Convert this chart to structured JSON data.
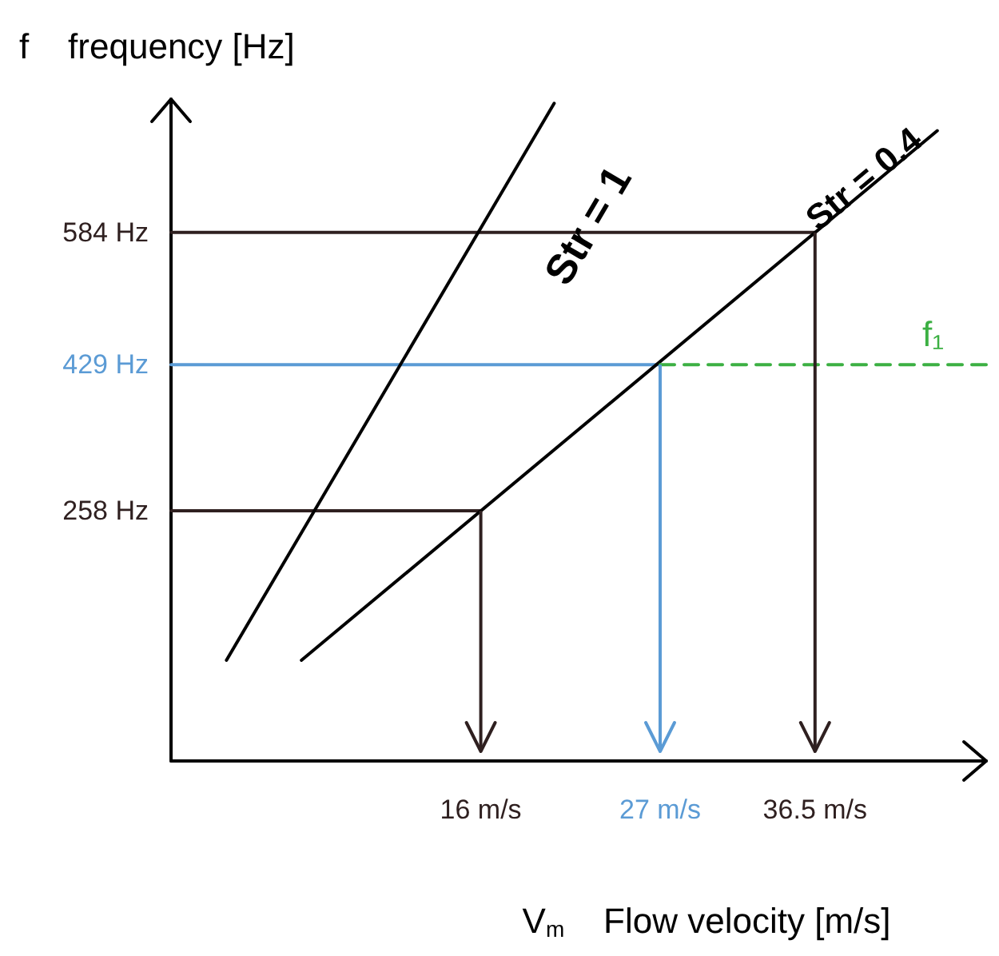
{
  "chart_data": {
    "type": "line",
    "xlabel": "V$_{m}$    Flow velocity [m/s]",
    "ylabel": "f    frequency [Hz]",
    "xlim": [
      -3,
      47
    ],
    "ylim": [
      -35,
      740
    ],
    "xticks": [
      {
        "value": 16,
        "label": "16 m/s"
      },
      {
        "value": 27,
        "label": "27 m/s"
      },
      {
        "value": 36.5,
        "label": "36.5 m/s"
      }
    ],
    "yticks": [
      {
        "value": 258,
        "label": "258 Hz"
      },
      {
        "value": 429,
        "label": "429 Hz"
      },
      {
        "value": 584,
        "label": "584 Hz"
      }
    ],
    "series": [
      {
        "name": "Str = 1",
        "color": "#000000",
        "x": [
          0.4,
          20.5
        ],
        "values": [
          83,
          735
        ]
      },
      {
        "name": "Str = 0.4",
        "color": "#000000",
        "x": [
          5,
          44
        ],
        "values": [
          83,
          703
        ]
      },
      {
        "color": "#2f2020",
        "x": [
          -3,
          16
        ],
        "values": [
          258,
          258
        ]
      },
      {
        "color": "#2f2020",
        "x": [
          -3,
          36.5
        ],
        "values": [
          584,
          584
        ]
      },
      {
        "color": "#5b9bd5",
        "x": [
          -3,
          27
        ],
        "values": [
          429,
          429
        ]
      },
      {
        "name": "f₁",
        "color": "#3cb043",
        "line_style": "dashed",
        "x": [
          27,
          47
        ],
        "values": [
          429,
          429
        ]
      }
    ],
    "grid": false,
    "legend": false,
    "marker": "none"
  }
}
